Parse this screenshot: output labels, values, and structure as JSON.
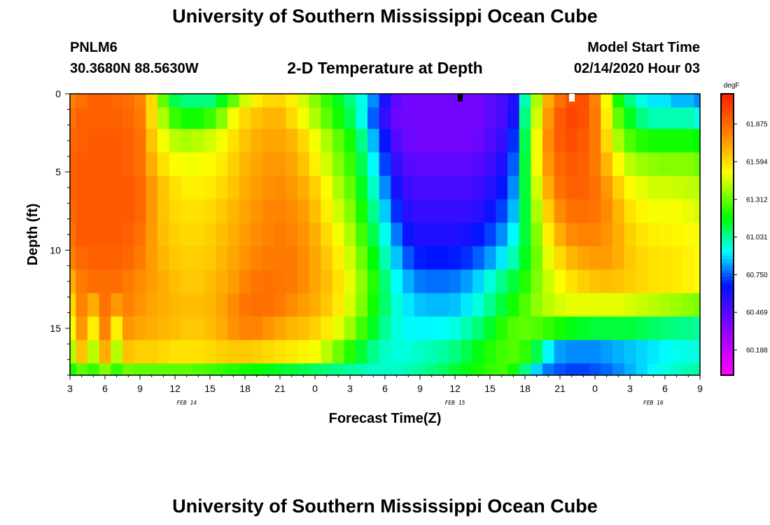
{
  "header": {
    "title": "University of Southern Mississippi Ocean Cube",
    "station_id": "PNLM6",
    "coordinates": "30.3680N 88.5630W",
    "subtitle": "2-D Temperature at Depth",
    "model_start_label": "Model Start Time",
    "model_start_value": "02/14/2020 Hour 03"
  },
  "footer": {
    "title": "University of Southern Mississippi Ocean Cube"
  },
  "colors": {
    "scale_low": "#ff00ff",
    "scale_high": "#ff2a00",
    "plot_border": "#000000"
  },
  "chart_data": {
    "type": "heatmap",
    "title": "2-D Temperature at Depth",
    "xlabel": "Forecast Time(Z)",
    "ylabel": "Depth (ft)",
    "x_tick_labels": [
      "3",
      "6",
      "9",
      "12",
      "15",
      "18",
      "21",
      "0",
      "3",
      "6",
      "9",
      "12",
      "15",
      "18",
      "21",
      "0",
      "3",
      "6",
      "9"
    ],
    "x_hours_from_start": [
      0,
      3,
      6,
      9,
      12,
      15,
      18,
      21,
      24,
      27,
      30,
      33,
      36,
      39,
      42,
      45,
      48,
      51,
      54
    ],
    "date_labels": [
      {
        "text": "FEB 14",
        "hour": 10
      },
      {
        "text": "FEB 15",
        "hour": 33
      },
      {
        "text": "FEB 16",
        "hour": 50
      }
    ],
    "y_ticks": [
      0,
      5,
      10,
      15
    ],
    "ylim": [
      0,
      18
    ],
    "xlim_hours": [
      0,
      54
    ],
    "depth_levels_ft": [
      0.25,
      1.5,
      3,
      4.5,
      6,
      7.5,
      9,
      10.5,
      12,
      13.5,
      15,
      16.5,
      18
    ],
    "colorbar": {
      "unit": "degF",
      "range": [
        60.0,
        62.1
      ],
      "tick_values": [
        "61.875",
        "61.594",
        "61.312",
        "61.031",
        "60.750",
        "60.469",
        "60.188"
      ]
    },
    "time_hours": [
      0,
      1,
      2,
      3,
      4,
      5,
      6,
      7,
      8,
      9,
      10,
      11,
      12,
      13,
      14,
      15,
      16,
      17,
      18,
      19,
      20,
      21,
      22,
      23,
      24,
      25,
      26,
      27,
      28,
      29,
      30,
      31,
      32,
      33,
      34,
      35,
      36,
      37,
      38,
      39,
      40,
      41,
      42,
      43,
      44,
      45,
      46,
      47,
      48,
      49,
      50,
      51,
      52,
      53,
      54
    ],
    "values": [
      [
        61.8,
        61.85,
        61.9,
        61.9,
        61.88,
        61.86,
        61.8,
        61.6,
        61.3,
        61.1,
        61.05,
        61.05,
        61.05,
        61.15,
        61.3,
        61.45,
        61.55,
        61.6,
        61.6,
        61.55,
        61.45,
        61.35,
        61.25,
        61.15,
        61.05,
        60.95,
        60.8,
        60.6,
        60.45,
        60.4,
        60.4,
        60.4,
        60.4,
        60.4,
        60.4,
        60.4,
        60.45,
        60.5,
        60.6,
        61.0,
        61.4,
        61.7,
        61.85,
        61.95,
        61.95,
        61.8,
        61.5,
        61.2,
        61.05,
        60.95,
        60.9,
        60.9,
        60.85,
        60.85,
        60.8
      ],
      [
        61.85,
        61.9,
        61.9,
        61.9,
        61.9,
        61.88,
        61.82,
        61.6,
        61.4,
        61.25,
        61.2,
        61.2,
        61.25,
        61.35,
        61.5,
        61.6,
        61.65,
        61.68,
        61.68,
        61.6,
        61.5,
        61.4,
        61.3,
        61.2,
        61.1,
        60.95,
        60.75,
        60.55,
        60.42,
        60.4,
        60.4,
        60.4,
        60.4,
        60.4,
        60.4,
        60.4,
        60.45,
        60.5,
        60.62,
        61.05,
        61.45,
        61.75,
        61.92,
        61.98,
        61.95,
        61.82,
        61.55,
        61.3,
        61.15,
        61.05,
        61.0,
        61.0,
        61.0,
        61.0,
        60.95
      ],
      [
        61.88,
        61.9,
        61.92,
        61.92,
        61.92,
        61.9,
        61.85,
        61.65,
        61.5,
        61.42,
        61.4,
        61.42,
        61.45,
        61.5,
        61.58,
        61.65,
        61.7,
        61.72,
        61.72,
        61.68,
        61.6,
        61.5,
        61.4,
        61.3,
        61.2,
        61.05,
        60.85,
        60.65,
        60.48,
        60.42,
        60.4,
        60.4,
        60.4,
        60.4,
        60.4,
        60.42,
        60.48,
        60.55,
        60.7,
        61.1,
        61.5,
        61.78,
        61.92,
        61.96,
        61.92,
        61.82,
        61.6,
        61.4,
        61.28,
        61.22,
        61.2,
        61.2,
        61.2,
        61.2,
        61.18
      ],
      [
        61.9,
        61.92,
        61.92,
        61.92,
        61.92,
        61.9,
        61.85,
        61.7,
        61.58,
        61.52,
        61.5,
        61.5,
        61.52,
        61.56,
        61.62,
        61.68,
        61.72,
        61.75,
        61.75,
        61.72,
        61.65,
        61.55,
        61.45,
        61.35,
        61.25,
        61.1,
        60.92,
        60.72,
        60.55,
        60.47,
        60.45,
        60.45,
        60.45,
        60.45,
        60.45,
        60.47,
        60.52,
        60.6,
        60.75,
        61.12,
        61.5,
        61.75,
        61.88,
        61.92,
        61.9,
        61.82,
        61.68,
        61.52,
        61.42,
        61.38,
        61.36,
        61.35,
        61.35,
        61.35,
        61.32
      ],
      [
        61.9,
        61.92,
        61.92,
        61.92,
        61.92,
        61.92,
        61.88,
        61.75,
        61.65,
        61.58,
        61.55,
        61.55,
        61.56,
        61.6,
        61.65,
        61.7,
        61.74,
        61.77,
        61.78,
        61.75,
        61.7,
        61.62,
        61.52,
        61.4,
        61.3,
        61.15,
        60.98,
        60.8,
        60.62,
        60.53,
        60.5,
        60.5,
        60.5,
        60.5,
        60.5,
        60.52,
        60.58,
        60.66,
        60.8,
        61.12,
        61.45,
        61.7,
        61.85,
        61.9,
        61.9,
        61.85,
        61.75,
        61.62,
        61.52,
        61.48,
        61.45,
        61.45,
        61.44,
        61.43,
        61.42
      ],
      [
        61.88,
        61.92,
        61.92,
        61.92,
        61.92,
        61.92,
        61.88,
        61.75,
        61.65,
        61.6,
        61.58,
        61.58,
        61.6,
        61.64,
        61.68,
        61.72,
        61.76,
        61.79,
        61.8,
        61.78,
        61.74,
        61.66,
        61.55,
        61.45,
        61.35,
        61.2,
        61.04,
        60.87,
        60.7,
        60.58,
        60.54,
        60.54,
        60.54,
        60.54,
        60.55,
        60.58,
        60.64,
        60.72,
        60.85,
        61.12,
        61.4,
        61.62,
        61.78,
        61.85,
        61.86,
        61.84,
        61.78,
        61.68,
        61.58,
        61.53,
        61.5,
        61.5,
        61.5,
        61.48,
        61.46
      ],
      [
        61.85,
        61.92,
        61.92,
        61.92,
        61.92,
        61.9,
        61.85,
        61.74,
        61.66,
        61.62,
        61.6,
        61.6,
        61.62,
        61.66,
        61.7,
        61.74,
        61.78,
        61.8,
        61.82,
        61.8,
        61.76,
        61.7,
        61.6,
        61.5,
        61.4,
        61.26,
        61.1,
        60.94,
        60.78,
        60.65,
        60.6,
        60.6,
        60.6,
        60.6,
        60.62,
        60.66,
        60.72,
        60.8,
        60.92,
        61.12,
        61.35,
        61.55,
        61.7,
        61.78,
        61.8,
        61.8,
        61.76,
        61.7,
        61.62,
        61.57,
        61.55,
        61.54,
        61.53,
        61.52,
        61.5
      ],
      [
        61.8,
        61.88,
        61.9,
        61.9,
        61.9,
        61.88,
        61.82,
        61.74,
        61.68,
        61.64,
        61.62,
        61.62,
        61.64,
        61.68,
        61.72,
        61.76,
        61.8,
        61.82,
        61.83,
        61.82,
        61.78,
        61.72,
        61.64,
        61.55,
        61.45,
        61.32,
        61.17,
        61.0,
        60.86,
        60.74,
        60.68,
        60.67,
        60.67,
        60.68,
        60.7,
        60.75,
        60.82,
        60.9,
        61.0,
        61.15,
        61.32,
        61.48,
        61.6,
        61.68,
        61.72,
        61.74,
        61.74,
        61.7,
        61.64,
        61.6,
        61.58,
        61.57,
        61.56,
        61.54,
        61.52
      ],
      [
        61.7,
        61.82,
        61.86,
        61.86,
        61.86,
        61.82,
        61.78,
        61.74,
        61.7,
        61.66,
        61.64,
        61.64,
        61.66,
        61.7,
        61.74,
        61.8,
        61.84,
        61.85,
        61.84,
        61.82,
        61.78,
        61.72,
        61.66,
        61.58,
        61.48,
        61.36,
        61.22,
        61.06,
        60.93,
        60.84,
        60.78,
        60.77,
        60.77,
        60.78,
        60.82,
        60.88,
        60.96,
        61.04,
        61.12,
        61.22,
        61.34,
        61.44,
        61.52,
        61.58,
        61.62,
        61.65,
        61.66,
        61.65,
        61.62,
        61.6,
        61.58,
        61.57,
        61.56,
        61.54,
        61.52
      ],
      [
        61.6,
        61.8,
        61.7,
        61.85,
        61.75,
        61.8,
        61.76,
        61.72,
        61.7,
        61.68,
        61.66,
        61.66,
        61.68,
        61.72,
        61.78,
        61.84,
        61.86,
        61.85,
        61.82,
        61.78,
        61.74,
        61.7,
        61.64,
        61.56,
        61.46,
        61.34,
        61.2,
        61.07,
        60.96,
        60.9,
        60.86,
        60.85,
        60.85,
        60.86,
        60.9,
        60.96,
        61.04,
        61.12,
        61.2,
        61.28,
        61.36,
        61.42,
        61.46,
        61.48,
        61.48,
        61.48,
        61.48,
        61.48,
        61.46,
        61.44,
        61.42,
        61.4,
        61.38,
        61.36,
        61.34
      ],
      [
        61.5,
        61.75,
        61.55,
        61.8,
        61.55,
        61.75,
        61.72,
        61.7,
        61.68,
        61.66,
        61.64,
        61.64,
        61.66,
        61.7,
        61.76,
        61.8,
        61.8,
        61.76,
        61.72,
        61.68,
        61.66,
        61.62,
        61.56,
        61.48,
        61.38,
        61.26,
        61.14,
        61.03,
        60.96,
        60.92,
        60.92,
        60.92,
        60.93,
        60.95,
        61.0,
        61.06,
        61.14,
        61.22,
        61.28,
        61.3,
        61.28,
        61.24,
        61.2,
        61.16,
        61.14,
        61.12,
        61.12,
        61.12,
        61.12,
        61.1,
        61.08,
        61.06,
        61.05,
        61.04,
        61.02
      ],
      [
        61.4,
        61.65,
        61.42,
        61.7,
        61.42,
        61.65,
        61.62,
        61.62,
        61.6,
        61.58,
        61.58,
        61.58,
        61.6,
        61.62,
        61.64,
        61.64,
        61.62,
        61.6,
        61.58,
        61.56,
        61.54,
        61.5,
        61.42,
        61.32,
        61.22,
        61.12,
        61.04,
        60.98,
        60.96,
        60.96,
        60.98,
        61.0,
        61.02,
        61.05,
        61.1,
        61.16,
        61.22,
        61.26,
        61.28,
        61.24,
        61.1,
        60.92,
        60.82,
        60.8,
        60.8,
        60.8,
        60.82,
        60.84,
        60.86,
        60.88,
        60.9,
        60.92,
        60.94,
        60.95,
        60.96
      ],
      [
        61.2,
        61.3,
        61.25,
        61.35,
        61.25,
        61.32,
        61.3,
        61.3,
        61.3,
        61.3,
        61.3,
        61.28,
        61.26,
        61.24,
        61.22,
        61.2,
        61.18,
        61.16,
        61.14,
        61.12,
        61.1,
        61.08,
        61.06,
        61.04,
        61.02,
        61.0,
        60.98,
        60.98,
        60.98,
        61.0,
        61.02,
        61.05,
        61.08,
        61.12,
        61.16,
        61.2,
        61.24,
        61.26,
        61.2,
        61.05,
        60.88,
        60.78,
        60.74,
        60.72,
        60.72,
        60.74,
        60.76,
        60.8,
        60.84,
        60.88,
        60.92,
        60.95,
        60.98,
        61.0,
        61.02
      ]
    ]
  }
}
